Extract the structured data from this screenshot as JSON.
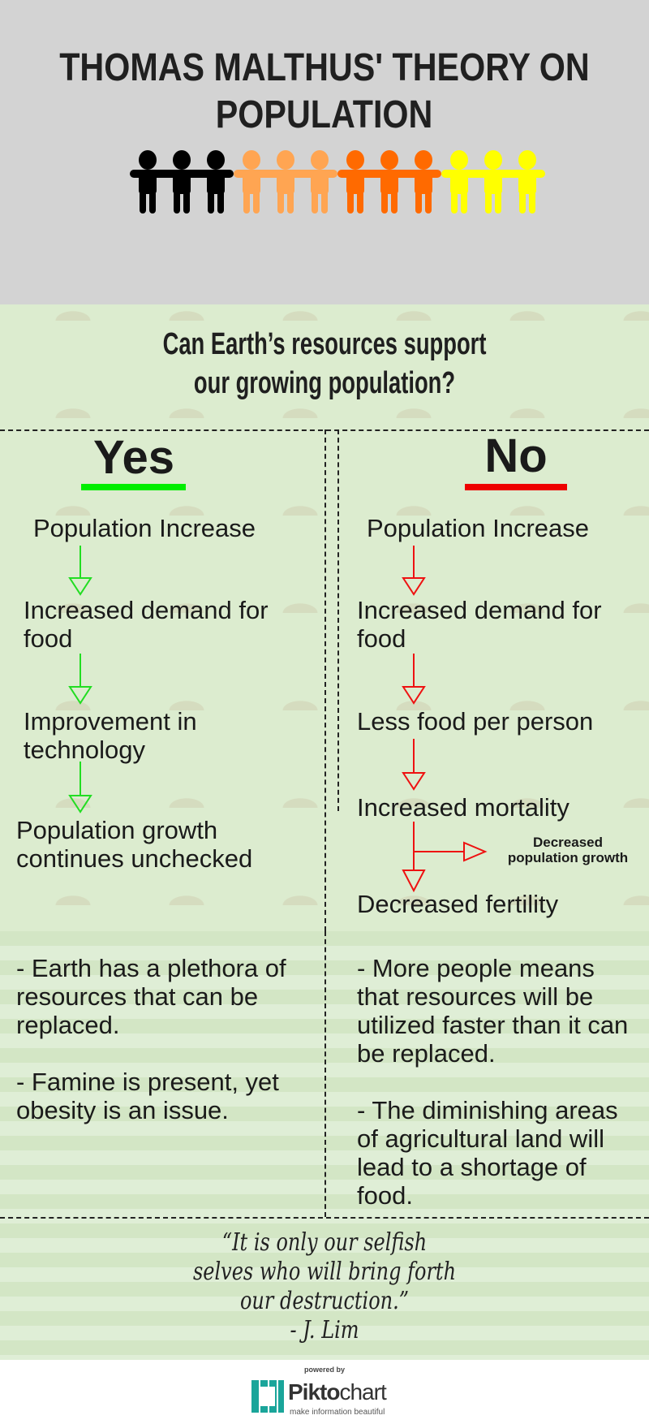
{
  "header": {
    "title_line1": "Thomas Malthus' Theory on",
    "title_line2": "Population",
    "people_colors": [
      "#000000",
      "#ffa552",
      "#ff6a00",
      "#ffff00"
    ]
  },
  "question": {
    "line1": "Can Earth’s resources support",
    "line2": "our growing population?"
  },
  "yes": {
    "label": "Yes",
    "underline_color": "#00ee00",
    "arrow_color": "#22dd22",
    "steps": [
      "Population Increase",
      "Increased demand for food",
      "Improvement in technology",
      "Population growth continues unchecked"
    ],
    "points": [
      "- Earth has a plethora of resources that can be replaced.",
      "- Famine is present, yet obesity is an issue."
    ]
  },
  "no": {
    "label": "No",
    "underline_color": "#ee0000",
    "arrow_color": "#ee1111",
    "steps": [
      "Population Increase",
      "Increased demand for food",
      "Less food per person",
      "Increased mortality",
      "Decreased fertility"
    ],
    "branch": "Decreased population growth",
    "points": [
      "- More people means that resources will be utilized faster than it can be replaced.",
      "- The diminishing areas of agricultural land will lead to a shortage of food."
    ]
  },
  "quote": {
    "line1": "“It is only our selfish",
    "line2": "selves who will bring forth",
    "line3": "our destruction.”",
    "author": "- J. Lim"
  },
  "footer": {
    "powered": "powered by",
    "brand_a": "Pikto",
    "brand_b": "chart",
    "tagline": "make information beautiful"
  }
}
